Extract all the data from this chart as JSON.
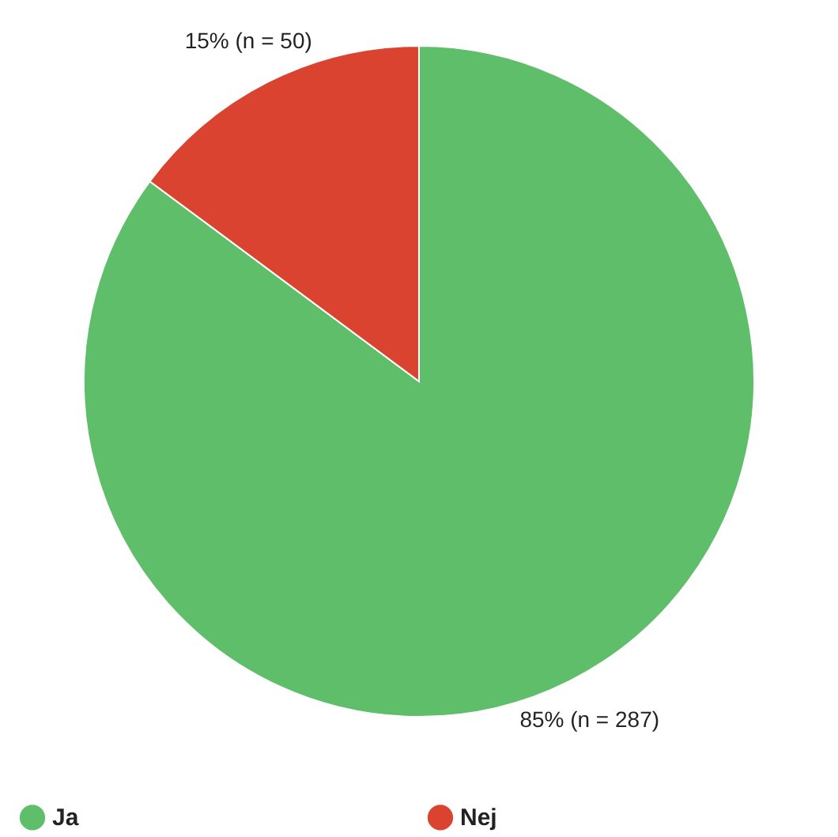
{
  "chart_data": {
    "type": "pie",
    "categories": [
      "Ja",
      "Nej"
    ],
    "values": [
      287,
      50
    ],
    "colors": [
      "#5fbe6a",
      "#d94330"
    ],
    "value_labels": [
      "85% (n = 287)",
      "15% (n = 50)"
    ],
    "legend": "bottom"
  }
}
